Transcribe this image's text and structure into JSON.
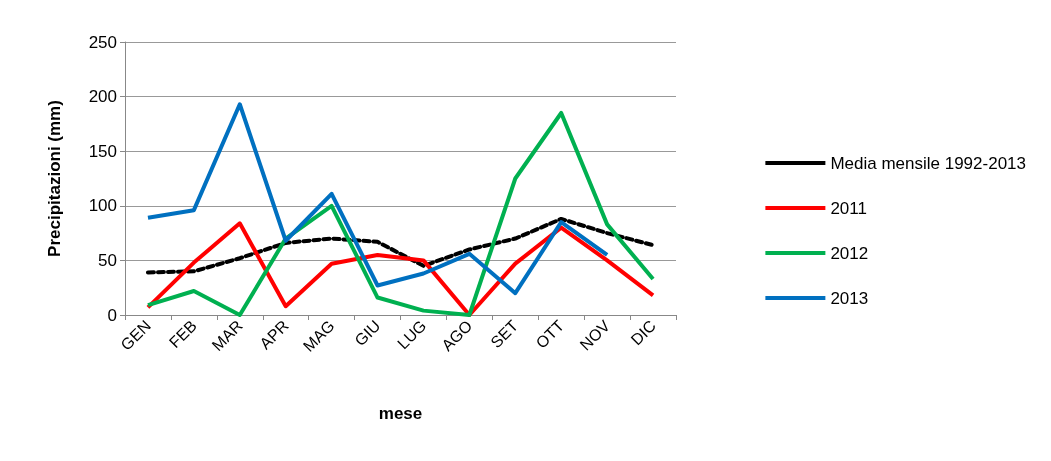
{
  "chart_data": {
    "type": "line",
    "xlabel": "mese",
    "ylabel": "Precipitazioni (mm)",
    "categories": [
      "GEN",
      "FEB",
      "MAR",
      "APR",
      "MAG",
      "GIU",
      "LUG",
      "AGO",
      "SET",
      "OTT",
      "NOV",
      "DIC"
    ],
    "series": [
      {
        "name": "Media mensile 1992-2013",
        "color": "#000000",
        "line_style": "dashed",
        "values": [
          39,
          40,
          52,
          66,
          70,
          67,
          45,
          60,
          70,
          88,
          75,
          64
        ]
      },
      {
        "name": "2011",
        "color": "#ff0000",
        "values": [
          7,
          48,
          84,
          8,
          47,
          55,
          50,
          0,
          47,
          80,
          50,
          18
        ]
      },
      {
        "name": "2012",
        "color": "#00b050",
        "values": [
          9,
          22,
          0,
          70,
          100,
          16,
          4,
          0,
          125,
          185,
          83,
          33
        ]
      },
      {
        "name": "2013",
        "color": "#0070c0",
        "values": [
          89,
          96,
          193,
          68,
          111,
          27,
          38,
          56,
          20,
          85,
          55,
          null
        ]
      }
    ],
    "ylim": [
      0,
      250
    ],
    "yticks": [
      0,
      50,
      100,
      150,
      200,
      250
    ],
    "grid": "y",
    "legend": "right",
    "marker": "none",
    "line_style": "solid"
  }
}
